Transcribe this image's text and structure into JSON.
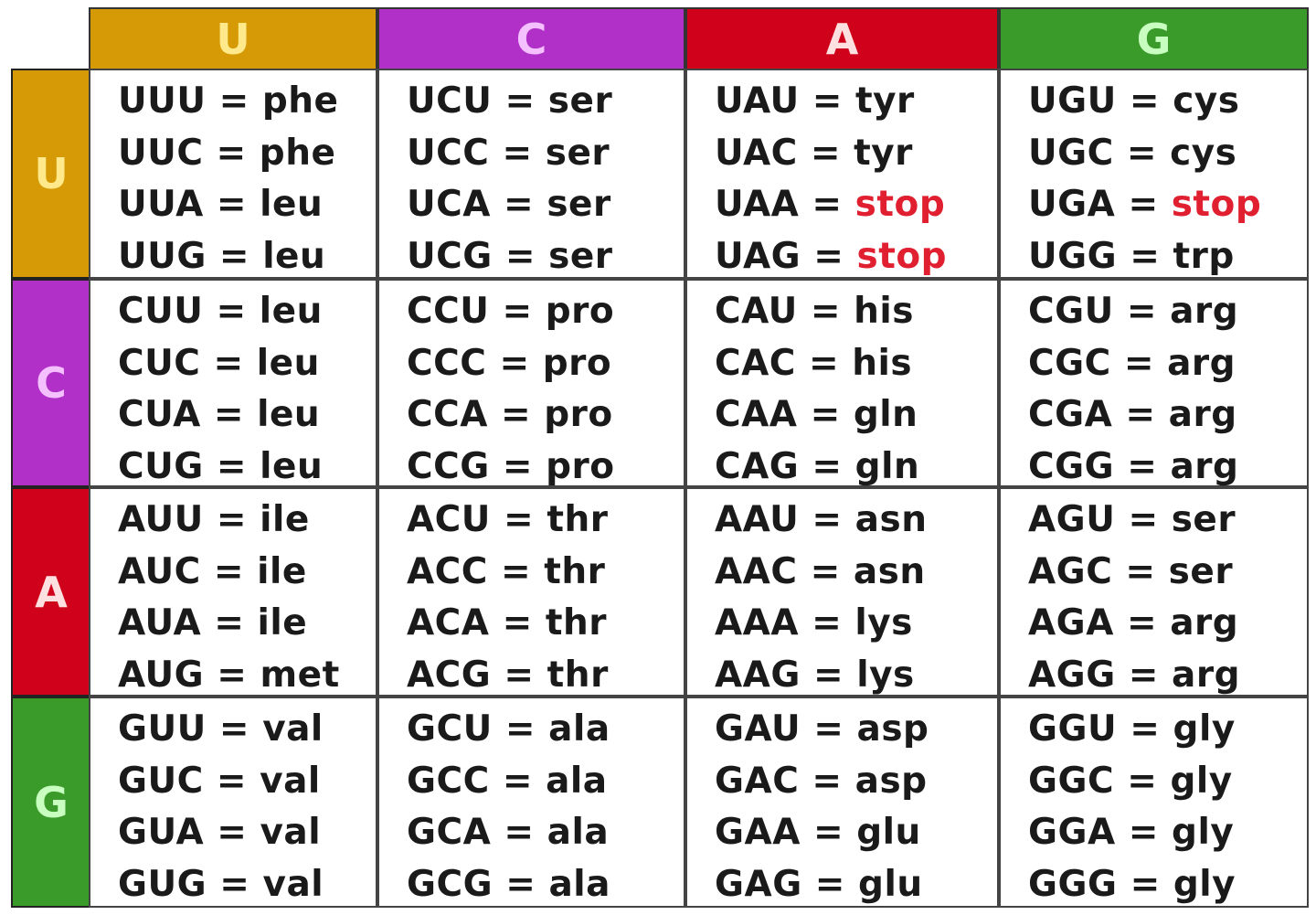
{
  "colors": {
    "U": "#d69a06",
    "C": "#b030c8",
    "A": "#d0021b",
    "G": "#3a9a2a",
    "U_text": "#ffe98a",
    "C_text": "#f4c0ff",
    "A_text": "#ffe0e0",
    "G_text": "#c8ffc0",
    "stop": "#e02030"
  },
  "column_headers": [
    "U",
    "C",
    "A",
    "G"
  ],
  "row_headers": [
    "U",
    "C",
    "A",
    "G"
  ],
  "cells": [
    [
      [
        "UUU = phe",
        "UUC = phe",
        "UUA = leu",
        "UUG = leu"
      ],
      [
        "UCU = ser",
        "UCC = ser",
        "UCA = ser",
        "UCG = ser"
      ],
      [
        "UAU = tyr",
        "UAC = tyr",
        "UAA = stop",
        "UAG = stop"
      ],
      [
        "UGU = cys",
        "UGC = cys",
        "UGA = stop",
        "UGG = trp"
      ]
    ],
    [
      [
        "CUU = leu",
        "CUC = leu",
        "CUA = leu",
        "CUG = leu"
      ],
      [
        "CCU = pro",
        "CCC = pro",
        "CCA = pro",
        "CCG = pro"
      ],
      [
        "CAU = his",
        "CAC = his",
        "CAA = gln",
        "CAG = gln"
      ],
      [
        "CGU = arg",
        "CGC = arg",
        "CGA = arg",
        "CGG = arg"
      ]
    ],
    [
      [
        "AUU = ile",
        "AUC = ile",
        "AUA = ile",
        "AUG = met"
      ],
      [
        "ACU = thr",
        "ACC = thr",
        "ACA = thr",
        "ACG = thr"
      ],
      [
        "AAU = asn",
        "AAC = asn",
        "AAA = lys",
        "AAG = lys"
      ],
      [
        "AGU = ser",
        "AGC = ser",
        "AGA = arg",
        "AGG = arg"
      ]
    ],
    [
      [
        "GUU = val",
        "GUC = val",
        "GUA = val",
        "GUG = val"
      ],
      [
        "GCU = ala",
        "GCC = ala",
        "GCA = ala",
        "GCG = ala"
      ],
      [
        "GAU = asp",
        "GAC = asp",
        "GAA = glu",
        "GAG = glu"
      ],
      [
        "GGU = gly",
        "GGC = gly",
        "GGA = gly",
        "GGG = gly"
      ]
    ]
  ]
}
